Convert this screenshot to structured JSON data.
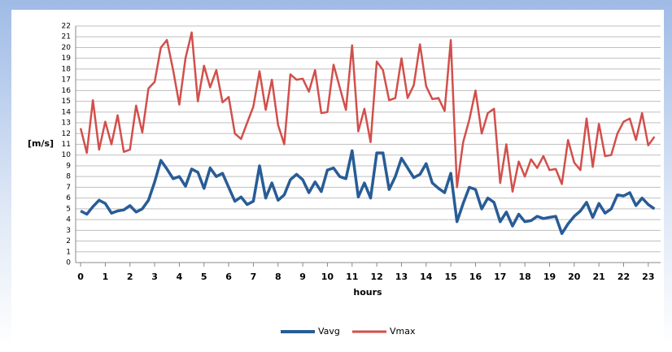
{
  "chart_data": {
    "type": "line",
    "x_label": "hours",
    "y_label": "[m/s]",
    "x": [
      0,
      0.25,
      0.5,
      0.75,
      1,
      1.25,
      1.5,
      1.75,
      2,
      2.25,
      2.5,
      2.75,
      3,
      3.25,
      3.5,
      3.75,
      4,
      4.25,
      4.5,
      4.75,
      5,
      5.25,
      5.5,
      5.75,
      6,
      6.25,
      6.5,
      6.75,
      7,
      7.25,
      7.5,
      7.75,
      8,
      8.25,
      8.5,
      8.75,
      9,
      9.25,
      9.5,
      9.75,
      10,
      10.25,
      10.5,
      10.75,
      11,
      11.25,
      11.5,
      11.75,
      12,
      12.25,
      12.5,
      12.75,
      13,
      13.25,
      13.5,
      13.75,
      14,
      14.25,
      14.5,
      14.75,
      15,
      15.25,
      15.5,
      15.75,
      16,
      16.25,
      16.5,
      16.75,
      17,
      17.25,
      17.5,
      17.75,
      18,
      18.25,
      18.5,
      18.75,
      19,
      19.25,
      19.5,
      19.75,
      20,
      20.25,
      20.5,
      20.75,
      21,
      21.25,
      21.5,
      21.75,
      22,
      22.25,
      22.5,
      22.75,
      23,
      23.25
    ],
    "series": [
      {
        "name": "Vavg",
        "color": "#285c96",
        "values": [
          4.8,
          4.5,
          5.2,
          5.8,
          5.5,
          4.6,
          4.8,
          4.9,
          5.3,
          4.7,
          5,
          5.8,
          7.5,
          9.5,
          8.7,
          7.8,
          8,
          7.1,
          8.7,
          8.4,
          6.9,
          8.8,
          8,
          8.3,
          7,
          5.7,
          6.1,
          5.4,
          5.7,
          9,
          6,
          7.4,
          5.8,
          6.3,
          7.7,
          8.2,
          7.7,
          6.5,
          7.5,
          6.6,
          8.6,
          8.8,
          8,
          7.8,
          10.4,
          6.1,
          7.4,
          6,
          10.2,
          10.2,
          6.8,
          8,
          9.7,
          8.8,
          7.9,
          8.2,
          9.2,
          7.4,
          6.9,
          6.5,
          8.3,
          3.8,
          5.5,
          7,
          6.8,
          5,
          6,
          5.6,
          3.8,
          4.7,
          3.4,
          4.5,
          3.8,
          3.9,
          4.3,
          4.1,
          4.2,
          4.3,
          2.7,
          3.6,
          4.3,
          4.8,
          5.6,
          4.2,
          5.5,
          4.6,
          5,
          6.3,
          6.2,
          6.5,
          5.3,
          6,
          5.4,
          5
        ]
      },
      {
        "name": "Vmax",
        "color": "#d24f4b",
        "values": [
          12.5,
          10.2,
          15.1,
          10.5,
          13.1,
          11,
          13.7,
          10.3,
          10.5,
          14.6,
          12.1,
          16.2,
          16.8,
          20,
          20.7,
          17.9,
          14.7,
          19,
          21.4,
          15,
          18.3,
          16.3,
          17.9,
          14.9,
          15.4,
          12,
          11.5,
          13,
          14.5,
          17.8,
          14.2,
          17,
          12.8,
          11,
          17.5,
          17,
          17.1,
          15.9,
          17.9,
          13.9,
          14,
          18.4,
          16.3,
          14.2,
          20.2,
          12.2,
          14.3,
          11.2,
          18.7,
          17.9,
          15.1,
          15.3,
          19,
          15.3,
          16.5,
          20.3,
          16.4,
          15.2,
          15.3,
          14.1,
          20.7,
          7,
          11.2,
          13.3,
          16,
          12,
          13.9,
          14.3,
          7.4,
          11,
          6.6,
          9.4,
          8,
          9.6,
          8.8,
          9.9,
          8.6,
          8.7,
          7.3,
          11.4,
          9.3,
          8.6,
          13.4,
          8.9,
          12.9,
          9.9,
          10,
          12,
          13.1,
          13.4,
          11.4,
          13.9,
          10.9,
          11.7
        ]
      }
    ],
    "xlim": [
      -0.2,
      23.5
    ],
    "xticks": [
      0,
      1,
      2,
      3,
      4,
      5,
      6,
      7,
      8,
      9,
      10,
      11,
      12,
      13,
      14,
      15,
      16,
      17,
      18,
      19,
      20,
      21,
      22,
      23
    ],
    "ylim": [
      0,
      22
    ],
    "yticks": [
      0,
      1,
      2,
      3,
      4,
      5,
      6,
      7,
      8,
      9,
      10,
      11,
      12,
      13,
      14,
      15,
      16,
      17,
      18,
      19,
      20,
      21,
      22
    ],
    "grid": true,
    "legend": "bottom"
  }
}
